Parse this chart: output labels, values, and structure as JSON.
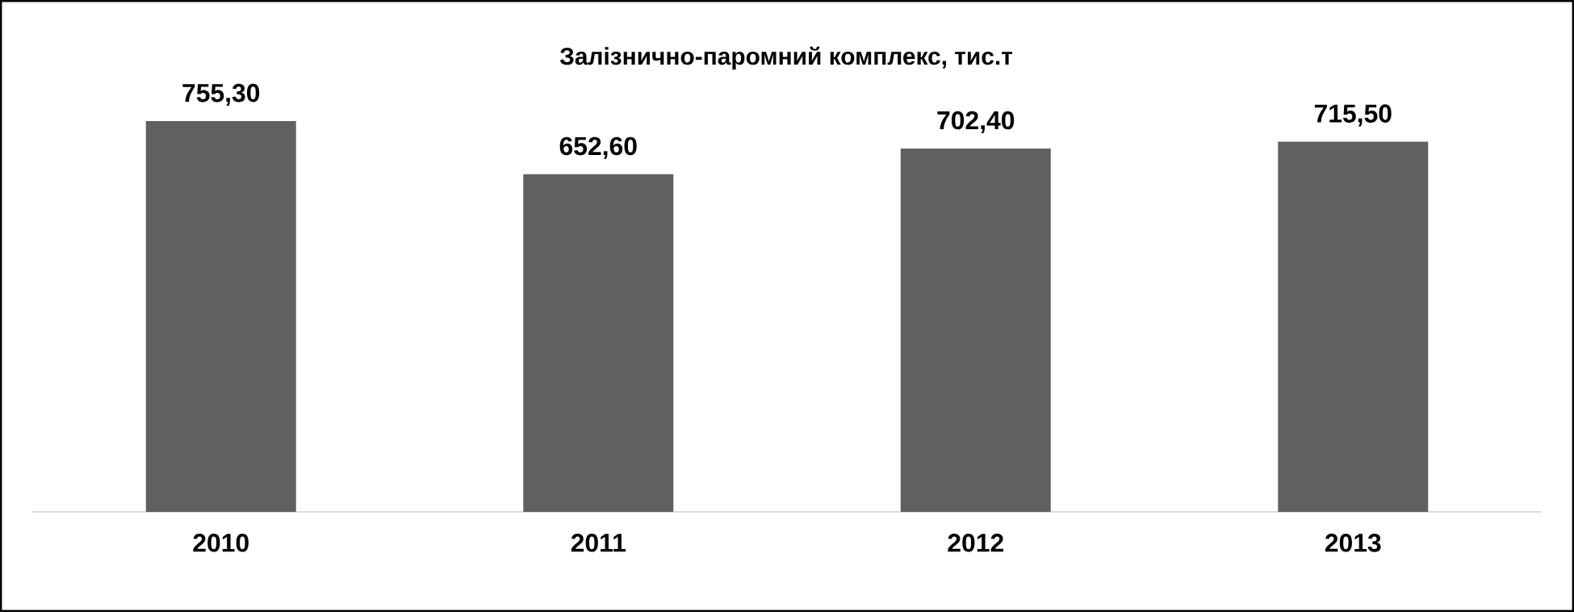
{
  "chart_data": {
    "type": "bar",
    "title": "Залізнично-паромний комплекс, тис.т",
    "categories": [
      "2010",
      "2011",
      "2012",
      "2013"
    ],
    "values": [
      755.3,
      652.6,
      702.4,
      715.5
    ],
    "value_labels": [
      "755,30",
      "652,60",
      "702,40",
      "715,50"
    ],
    "color": "#606060",
    "tick_labels": "x"
  }
}
